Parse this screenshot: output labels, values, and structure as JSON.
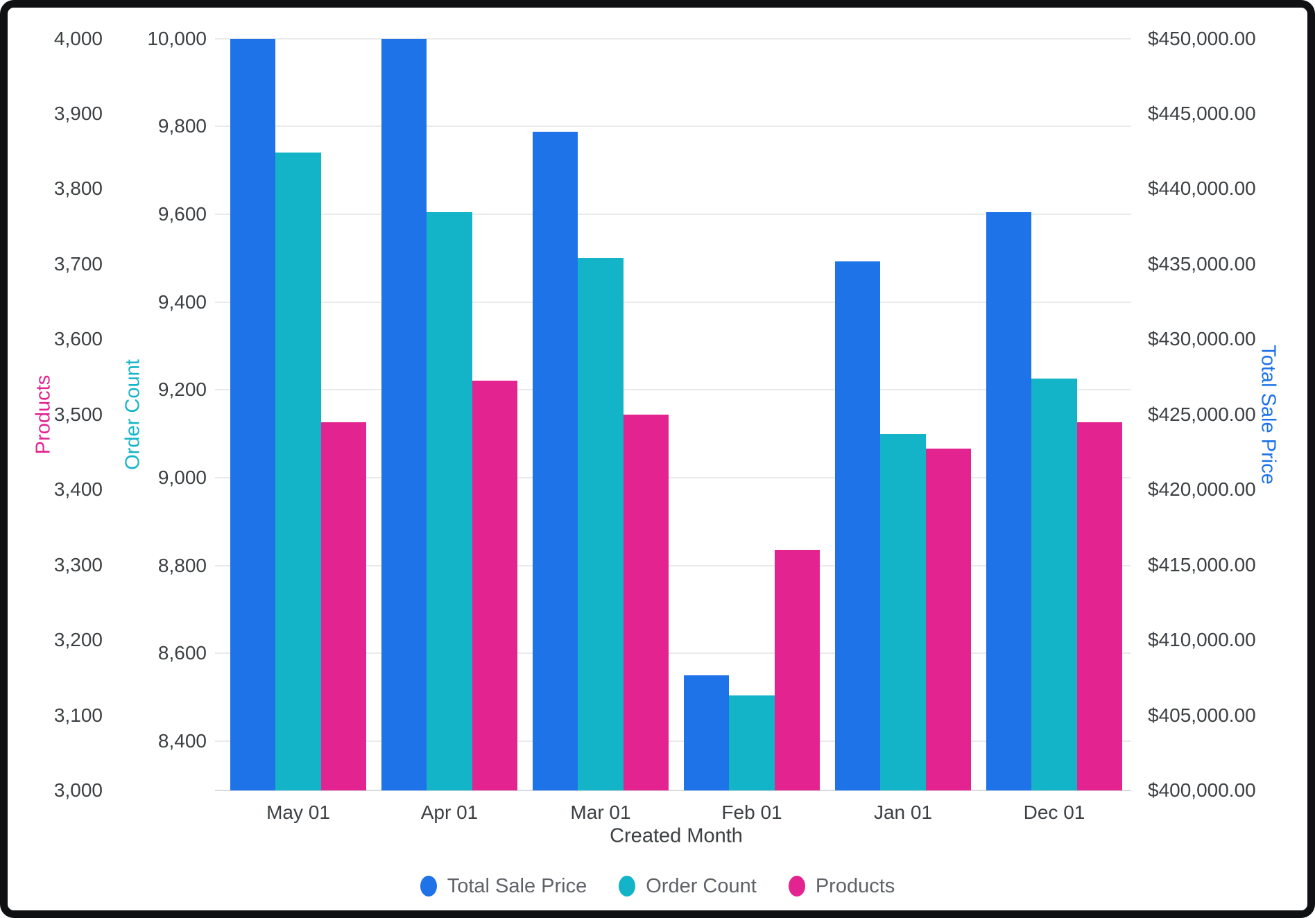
{
  "chart_data": {
    "type": "bar",
    "title": "",
    "xlabel": "Created Month",
    "categories": [
      "May 01",
      "Apr 01",
      "Mar 01",
      "Feb 01",
      "Jan 01",
      "Dec 01"
    ],
    "series": [
      {
        "name": "Total Sale Price",
        "axis": "price",
        "color": "#1e73e8",
        "values": [
          450000,
          450000,
          443800,
          407650,
          435200,
          438450
        ]
      },
      {
        "name": "Order Count",
        "axis": "orders",
        "color": "#13b4c8",
        "values": [
          9740,
          9605,
          9500,
          8505,
          9100,
          9225
        ]
      },
      {
        "name": "Products",
        "axis": "products",
        "color": "#e32490",
        "values": [
          3490,
          3545,
          3500,
          3320,
          3455,
          3490
        ]
      }
    ],
    "axes": {
      "products": {
        "title": "Products",
        "side": "left-outer",
        "color": "#e32490",
        "min": 3000,
        "max": 4000,
        "ticks": [
          3000,
          3100,
          3200,
          3300,
          3400,
          3500,
          3600,
          3700,
          3800,
          3900,
          4000
        ],
        "tick_labels": [
          "3,000",
          "3,100",
          "3,200",
          "3,300",
          "3,400",
          "3,500",
          "3,600",
          "3,700",
          "3,800",
          "3,900",
          "4,000"
        ]
      },
      "orders": {
        "title": "Order Count",
        "side": "left-inner",
        "color": "#13b4c8",
        "min": 8288,
        "max": 10000,
        "ticks": [
          8400,
          8600,
          8800,
          9000,
          9200,
          9400,
          9600,
          9800,
          10000
        ],
        "tick_labels": [
          "8,400",
          "8,600",
          "8,800",
          "9,000",
          "9,200",
          "9,400",
          "9,600",
          "9,800",
          "10,000"
        ]
      },
      "price": {
        "title": "Total Sale Price",
        "side": "right",
        "color": "#1e73e8",
        "min": 400000,
        "max": 450000,
        "ticks": [
          400000,
          405000,
          410000,
          415000,
          420000,
          425000,
          430000,
          435000,
          440000,
          445000,
          450000
        ],
        "tick_labels": [
          "$400,000.00",
          "$405,000.00",
          "$410,000.00",
          "$415,000.00",
          "$420,000.00",
          "$425,000.00",
          "$430,000.00",
          "$435,000.00",
          "$440,000.00",
          "$445,000.00",
          "$450,000.00"
        ]
      }
    },
    "grid": {
      "source": "orders",
      "on": true,
      "color": "#eaeaea"
    },
    "legend": {
      "position": "bottom",
      "items": [
        {
          "label": "Total Sale Price",
          "color": "#1e73e8"
        },
        {
          "label": "Order Count",
          "color": "#13b4c8"
        },
        {
          "label": "Products",
          "color": "#e32490"
        }
      ]
    }
  },
  "ui": {
    "text_color": "#3c4043",
    "legend_text_color": "#5f6368",
    "frame_color": "#0f1113",
    "background": "#ffffff"
  }
}
